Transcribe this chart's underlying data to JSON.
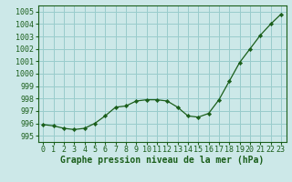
{
  "x": [
    0,
    1,
    2,
    3,
    4,
    5,
    6,
    7,
    8,
    9,
    10,
    11,
    12,
    13,
    14,
    15,
    16,
    17,
    18,
    19,
    20,
    21,
    22,
    23
  ],
  "y": [
    995.9,
    995.8,
    995.6,
    995.5,
    995.6,
    996.0,
    996.6,
    997.3,
    997.4,
    997.8,
    997.9,
    997.9,
    997.8,
    997.3,
    996.6,
    996.5,
    996.8,
    997.9,
    999.4,
    1000.9,
    1002.0,
    1003.1,
    1004.0,
    1004.8
  ],
  "line_color": "#1a5e1a",
  "marker_color": "#1a5e1a",
  "bg_color": "#cce8e8",
  "grid_color": "#99cccc",
  "xlabel": "Graphe pression niveau de la mer (hPa)",
  "ylim": [
    994.5,
    1005.5
  ],
  "yticks": [
    995,
    996,
    997,
    998,
    999,
    1000,
    1001,
    1002,
    1003,
    1004,
    1005
  ],
  "xlim": [
    -0.5,
    23.5
  ],
  "xticks": [
    0,
    1,
    2,
    3,
    4,
    5,
    6,
    7,
    8,
    9,
    10,
    11,
    12,
    13,
    14,
    15,
    16,
    17,
    18,
    19,
    20,
    21,
    22,
    23
  ],
  "xlabel_fontsize": 7.0,
  "tick_fontsize": 6.0
}
